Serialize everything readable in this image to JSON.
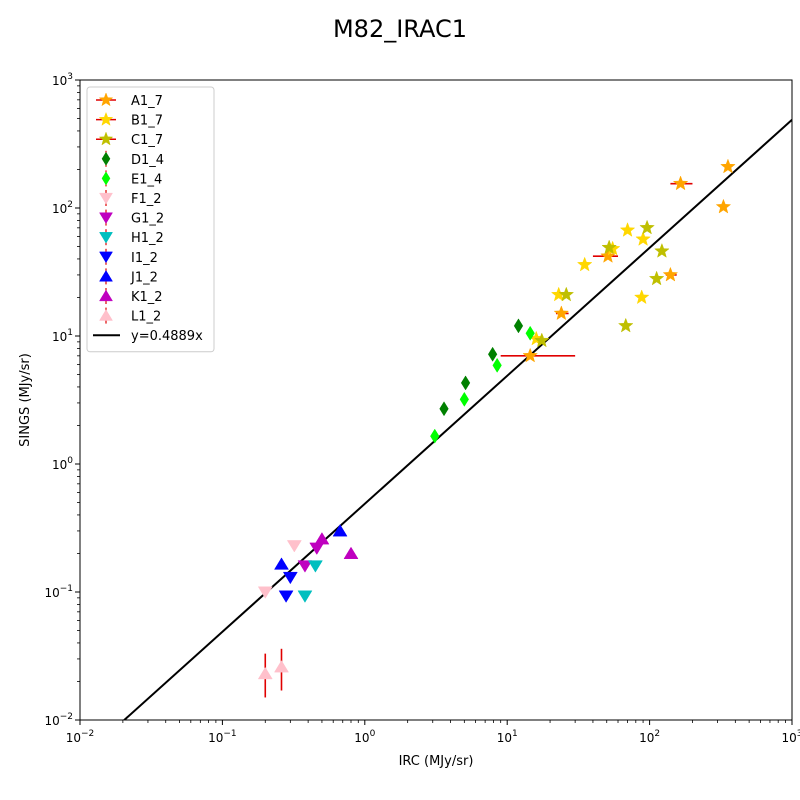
{
  "chart_data": {
    "type": "scatter",
    "title": "M82_IRAC1",
    "xlabel": "IRC (MJy/sr)",
    "ylabel": "SINGS (MJy/sr)",
    "xscale": "log",
    "yscale": "log",
    "xlim": [
      0.01,
      1000
    ],
    "ylim": [
      0.01,
      1000
    ],
    "x_ticks": [
      {
        "base": "10",
        "exp": "−2"
      },
      {
        "base": "10",
        "exp": "−1"
      },
      {
        "base": "10",
        "exp": "0"
      },
      {
        "base": "10",
        "exp": "1"
      },
      {
        "base": "10",
        "exp": "2"
      },
      {
        "base": "10",
        "exp": "3"
      }
    ],
    "y_ticks": [
      {
        "base": "10",
        "exp": "−2"
      },
      {
        "base": "10",
        "exp": "−1"
      },
      {
        "base": "10",
        "exp": "0"
      },
      {
        "base": "10",
        "exp": "1"
      },
      {
        "base": "10",
        "exp": "2"
      },
      {
        "base": "10",
        "exp": "3"
      }
    ],
    "grid": false,
    "legend_position": "upper-left",
    "fit_line": {
      "label": "y=0.4889x",
      "slope": 0.4889,
      "color": "#000000"
    },
    "series": [
      {
        "name": "A1_7",
        "marker": "star",
        "color": "#FFA500",
        "points": [
          {
            "x": 14.5,
            "y": 7.0,
            "xerr": [
              9,
              30
            ]
          },
          {
            "x": 24,
            "y": 15,
            "xerr": [
              22,
              27
            ]
          },
          {
            "x": 51,
            "y": 42,
            "xerr": [
              40,
              60
            ]
          },
          {
            "x": 140,
            "y": 30,
            "xerr": [
              130,
              155
            ]
          },
          {
            "x": 165,
            "y": 155,
            "xerr": [
              140,
              200
            ]
          },
          {
            "x": 330,
            "y": 102
          },
          {
            "x": 355,
            "y": 210
          }
        ]
      },
      {
        "name": "B1_7",
        "marker": "star",
        "color": "#FFD700",
        "points": [
          {
            "x": 23,
            "y": 21
          },
          {
            "x": 35,
            "y": 36
          },
          {
            "x": 55,
            "y": 48
          },
          {
            "x": 70,
            "y": 67
          },
          {
            "x": 88,
            "y": 20
          },
          {
            "x": 90,
            "y": 57
          },
          {
            "x": 16,
            "y": 9.5
          }
        ]
      },
      {
        "name": "C1_7",
        "marker": "star",
        "color": "#BFBF00",
        "points": [
          {
            "x": 26,
            "y": 21
          },
          {
            "x": 52,
            "y": 49
          },
          {
            "x": 68,
            "y": 12
          },
          {
            "x": 96,
            "y": 70
          },
          {
            "x": 112,
            "y": 28
          },
          {
            "x": 122,
            "y": 46
          },
          {
            "x": 17.5,
            "y": 9.2
          }
        ]
      },
      {
        "name": "D1_4",
        "marker": "diamond",
        "color": "#008000",
        "points": [
          {
            "x": 3.6,
            "y": 2.7
          },
          {
            "x": 5.1,
            "y": 4.3
          },
          {
            "x": 7.9,
            "y": 7.2
          },
          {
            "x": 12,
            "y": 12
          }
        ]
      },
      {
        "name": "E1_4",
        "marker": "diamond",
        "color": "#00FF00",
        "points": [
          {
            "x": 3.1,
            "y": 1.65
          },
          {
            "x": 5.0,
            "y": 3.2
          },
          {
            "x": 8.5,
            "y": 5.9
          },
          {
            "x": 14.5,
            "y": 10.5
          }
        ]
      },
      {
        "name": "F1_2",
        "marker": "triangle_down",
        "color": "#FFC0CB",
        "points": [
          {
            "x": 0.2,
            "y": 0.1
          },
          {
            "x": 0.32,
            "y": 0.23
          }
        ]
      },
      {
        "name": "G1_2",
        "marker": "triangle_down",
        "color": "#BF00BF",
        "points": [
          {
            "x": 0.38,
            "y": 0.16
          },
          {
            "x": 0.46,
            "y": 0.22
          }
        ]
      },
      {
        "name": "H1_2",
        "marker": "triangle_down",
        "color": "#00BFBF",
        "points": [
          {
            "x": 0.38,
            "y": 0.093
          },
          {
            "x": 0.45,
            "y": 0.16
          }
        ]
      },
      {
        "name": "I1_2",
        "marker": "triangle_down",
        "color": "#0000FF",
        "points": [
          {
            "x": 0.28,
            "y": 0.093
          },
          {
            "x": 0.3,
            "y": 0.13
          }
        ]
      },
      {
        "name": "J1_2",
        "marker": "triangle_up",
        "color": "#0000FF",
        "points": [
          {
            "x": 0.26,
            "y": 0.165
          },
          {
            "x": 0.67,
            "y": 0.3
          }
        ]
      },
      {
        "name": "K1_2",
        "marker": "triangle_up",
        "color": "#BF00BF",
        "points": [
          {
            "x": 0.5,
            "y": 0.26
          },
          {
            "x": 0.8,
            "y": 0.2
          }
        ]
      },
      {
        "name": "L1_2",
        "marker": "triangle_up",
        "color": "#FFC0CB",
        "points": [
          {
            "x": 0.2,
            "y": 0.023,
            "yerr": [
              0.015,
              0.033
            ]
          },
          {
            "x": 0.26,
            "y": 0.026,
            "yerr": [
              0.017,
              0.036
            ]
          }
        ]
      }
    ]
  }
}
